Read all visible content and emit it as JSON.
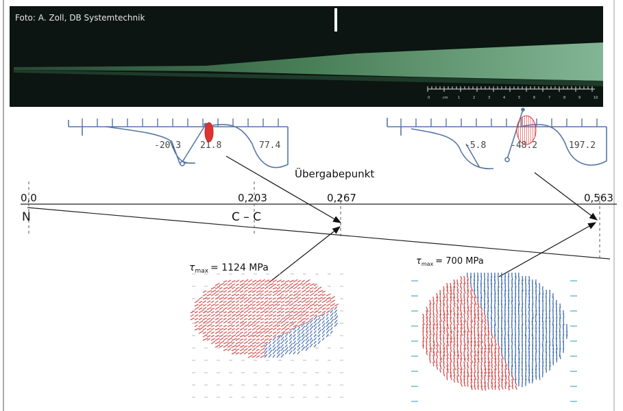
{
  "photo": {
    "credit": "Foto: A. Zoll, DB Systemtechnik",
    "scale": [
      "0",
      "cm",
      "1",
      "2",
      "3",
      "4",
      "5",
      "6",
      "7",
      "8",
      "9",
      "10"
    ]
  },
  "profiles": [
    {
      "labels": [
        "-20.3",
        "21.8",
        "77.4"
      ]
    },
    {
      "labels": [
        "-5.8",
        "-48.2",
        "197.2"
      ]
    }
  ],
  "transfer_label": "Übergabepunkt",
  "positions": [
    {
      "value": "0,0",
      "label": "N"
    },
    {
      "value": "0,203",
      "label": "C – C"
    },
    {
      "value": "0,267"
    },
    {
      "value": "0,563"
    }
  ],
  "stress": [
    {
      "symbol": "τ",
      "sub": "max",
      "text": "= 1124 MPa"
    },
    {
      "symbol": "τ",
      "sub": "max",
      "text": "= 700 MPa"
    }
  ]
}
